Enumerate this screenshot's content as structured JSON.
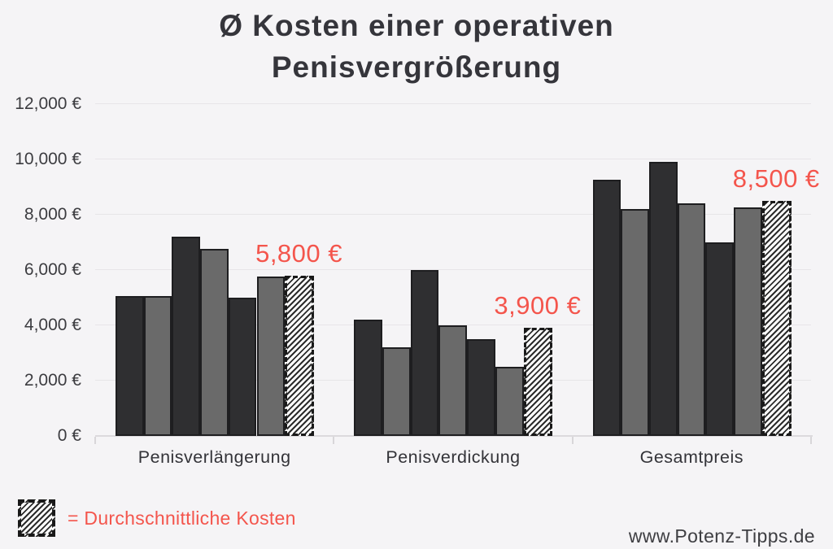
{
  "title": "Ø Kosten einer operativen Penisvergrößerung",
  "source": "www.Potenz-Tipps.de",
  "legend": {
    "swatch": "hatched-pattern",
    "label": "= Durchschnittliche Kosten"
  },
  "colors": {
    "background": "#f5f4f6",
    "dark_bar": "#2f2f31",
    "gray_bar": "#6a6a6a",
    "bar_border": "#1e1e20",
    "accent_red": "#f4554c",
    "gridline": "#e7e5e8",
    "text_dark": "#35353b"
  },
  "chart_data": {
    "type": "bar",
    "title": "Ø Kosten einer operativen Penisvergrößerung",
    "categories": [
      "Penisverlängerung",
      "Penisverdickung",
      "Gesamtpreis"
    ],
    "groups": [
      {
        "category": "Penisverlängerung",
        "values": [
          5050,
          5050,
          7200,
          6750,
          5000,
          5750
        ],
        "average": 5800,
        "average_label": "5,800 €"
      },
      {
        "category": "Penisverdickung",
        "values": [
          4200,
          3200,
          6000,
          4000,
          3500,
          2500
        ],
        "average": 3900,
        "average_label": "3,900 €"
      },
      {
        "category": "Gesamtpreis",
        "values": [
          9250,
          8200,
          9900,
          8400,
          7000,
          8250
        ],
        "average": 8500,
        "average_label": "8,500 €"
      }
    ],
    "y_ticks": [
      "0 €",
      "2,000 €",
      "4,000 €",
      "6,000 €",
      "8,000 €",
      "10,000 €",
      "12,000 €"
    ],
    "ylim": [
      0,
      12000
    ],
    "y_step": 2000,
    "grid": true,
    "bar_fill_alternation": [
      "dark",
      "gray"
    ],
    "average_bar_style": "hatched-dashed-outline",
    "legend_position": "bottom-left",
    "xlabel": "",
    "ylabel": ""
  }
}
